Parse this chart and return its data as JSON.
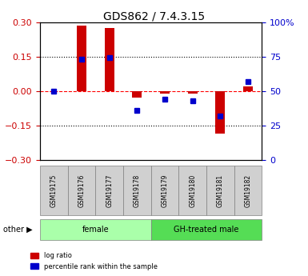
{
  "title": "GDS862 / 7.4.3.15",
  "samples": [
    "GSM19175",
    "GSM19176",
    "GSM19177",
    "GSM19178",
    "GSM19179",
    "GSM19180",
    "GSM19181",
    "GSM19182"
  ],
  "log_ratio": [
    0.0,
    0.285,
    0.275,
    -0.03,
    -0.01,
    -0.01,
    -0.185,
    0.02
  ],
  "percentile_rank": [
    50,
    73,
    74,
    36,
    44,
    43,
    32,
    57
  ],
  "groups": [
    {
      "label": "female",
      "samples": [
        0,
        1,
        2,
        3
      ],
      "color": "#aaffaa"
    },
    {
      "label": "GH-treated male",
      "samples": [
        4,
        5,
        6,
        7
      ],
      "color": "#55dd55"
    }
  ],
  "ylim_left": [
    -0.3,
    0.3
  ],
  "ylim_right": [
    0,
    100
  ],
  "yticks_left": [
    -0.3,
    -0.15,
    0,
    0.15,
    0.3
  ],
  "yticks_right": [
    0,
    25,
    50,
    75,
    100
  ],
  "hlines": [
    0.15,
    0,
    -0.15
  ],
  "bar_color": "#cc0000",
  "dot_color": "#0000cc",
  "background_color": "#ffffff",
  "plot_bg": "#ffffff",
  "left_label_color": "#cc0000",
  "right_label_color": "#0000cc"
}
